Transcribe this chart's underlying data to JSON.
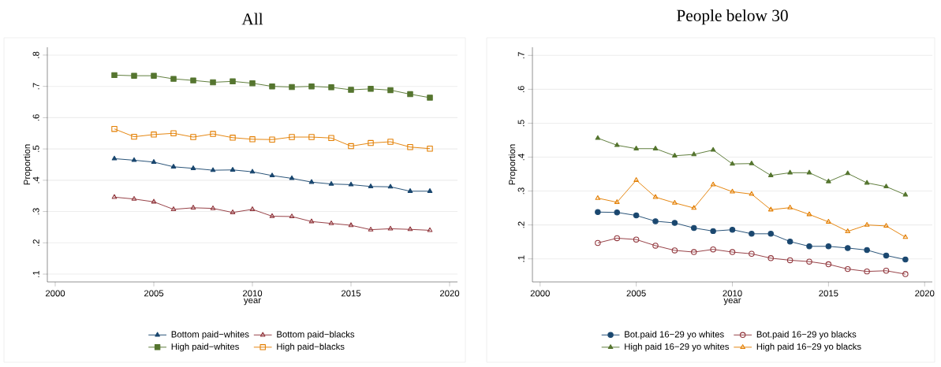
{
  "chart_data": [
    {
      "type": "line",
      "title": "All",
      "xlabel": "year",
      "ylabel": "Proportion",
      "x": [
        2003,
        2004,
        2005,
        2006,
        2007,
        2008,
        2009,
        2010,
        2011,
        2012,
        2013,
        2014,
        2015,
        2016,
        2017,
        2018,
        2019
      ],
      "series": [
        {
          "name": "Bottom paid−whites",
          "color": "#1a476f",
          "marker": "triangle",
          "values": [
            0.469,
            0.464,
            0.458,
            0.443,
            0.438,
            0.432,
            0.433,
            0.427,
            0.415,
            0.406,
            0.394,
            0.388,
            0.386,
            0.38,
            0.379,
            0.365,
            0.365
          ]
        },
        {
          "name": "Bottom paid−blacks",
          "color": "#90353b",
          "marker": "triangle",
          "values": [
            0.346,
            0.34,
            0.331,
            0.307,
            0.312,
            0.31,
            0.297,
            0.307,
            0.285,
            0.284,
            0.268,
            0.262,
            0.256,
            0.242,
            0.245,
            0.243,
            0.24
          ]
        },
        {
          "name": "High paid−whites",
          "color": "#55752f",
          "marker": "square",
          "values": [
            0.736,
            0.734,
            0.734,
            0.724,
            0.719,
            0.713,
            0.716,
            0.71,
            0.7,
            0.698,
            0.7,
            0.697,
            0.689,
            0.692,
            0.688,
            0.675,
            0.664
          ]
        },
        {
          "name": "High paid−blacks",
          "color": "#e37e00",
          "marker": "square",
          "values": [
            0.564,
            0.539,
            0.546,
            0.55,
            0.538,
            0.548,
            0.536,
            0.531,
            0.53,
            0.538,
            0.538,
            0.535,
            0.509,
            0.519,
            0.523,
            0.506,
            0.501
          ]
        }
      ],
      "xlim": [
        1999.6,
        2020.4
      ],
      "xticks": [
        2000,
        2005,
        2010,
        2015,
        2020
      ],
      "ylim": [
        0.075,
        0.825
      ],
      "yticks": [
        {
          "value": 0.1,
          "label": ".1"
        },
        {
          "value": 0.2,
          "label": ".2"
        },
        {
          "value": 0.3,
          "label": ".3"
        },
        {
          "value": 0.4,
          "label": ".4"
        },
        {
          "value": 0.5,
          "label": ".5"
        },
        {
          "value": 0.6,
          "label": ".6"
        },
        {
          "value": 0.7,
          "label": ".7"
        },
        {
          "value": 0.8,
          "label": ".8"
        }
      ],
      "grid": "y",
      "legend": "bottom"
    },
    {
      "type": "line",
      "title": "People below 30",
      "xlabel": "year",
      "ylabel": "Proportion",
      "x": [
        2003,
        2004,
        2005,
        2006,
        2007,
        2008,
        2009,
        2010,
        2011,
        2012,
        2013,
        2014,
        2015,
        2016,
        2017,
        2018,
        2019
      ],
      "series": [
        {
          "name": "Bot.paid 16−29 yo whites",
          "color": "#1a476f",
          "marker": "circle",
          "values": [
            0.238,
            0.237,
            0.228,
            0.211,
            0.206,
            0.191,
            0.182,
            0.186,
            0.174,
            0.174,
            0.151,
            0.137,
            0.137,
            0.132,
            0.126,
            0.11,
            0.098
          ]
        },
        {
          "name": "Bot.paid 16−29 yo blacks",
          "color": "#90353b",
          "marker": "circle",
          "values": [
            0.147,
            0.161,
            0.157,
            0.139,
            0.125,
            0.12,
            0.128,
            0.12,
            0.115,
            0.102,
            0.096,
            0.092,
            0.084,
            0.07,
            0.063,
            0.065,
            0.055
          ]
        },
        {
          "name": "High paid 16−29 yo whites",
          "color": "#55752f",
          "marker": "triangle",
          "values": [
            0.456,
            0.435,
            0.425,
            0.425,
            0.404,
            0.408,
            0.421,
            0.38,
            0.381,
            0.346,
            0.354,
            0.354,
            0.328,
            0.352,
            0.324,
            0.313,
            0.289
          ]
        },
        {
          "name": "High paid 16−29 yo blacks",
          "color": "#e37e00",
          "marker": "triangle",
          "values": [
            0.279,
            0.267,
            0.332,
            0.282,
            0.265,
            0.25,
            0.319,
            0.298,
            0.291,
            0.245,
            0.251,
            0.231,
            0.209,
            0.181,
            0.2,
            0.197,
            0.164
          ]
        }
      ],
      "xlim": [
        1999.6,
        2020.4
      ],
      "xticks": [
        2000,
        2005,
        2010,
        2015,
        2020
      ],
      "ylim": [
        0.032,
        0.724
      ],
      "yticks": [
        {
          "value": 0.1,
          "label": ".1"
        },
        {
          "value": 0.2,
          "label": ".2"
        },
        {
          "value": 0.3,
          "label": ".3"
        },
        {
          "value": 0.4,
          "label": ".4"
        },
        {
          "value": 0.5,
          "label": ".5"
        },
        {
          "value": 0.6,
          "label": ".6"
        },
        {
          "value": 0.7,
          "label": ".7"
        }
      ],
      "grid": "y",
      "legend": "bottom"
    }
  ]
}
